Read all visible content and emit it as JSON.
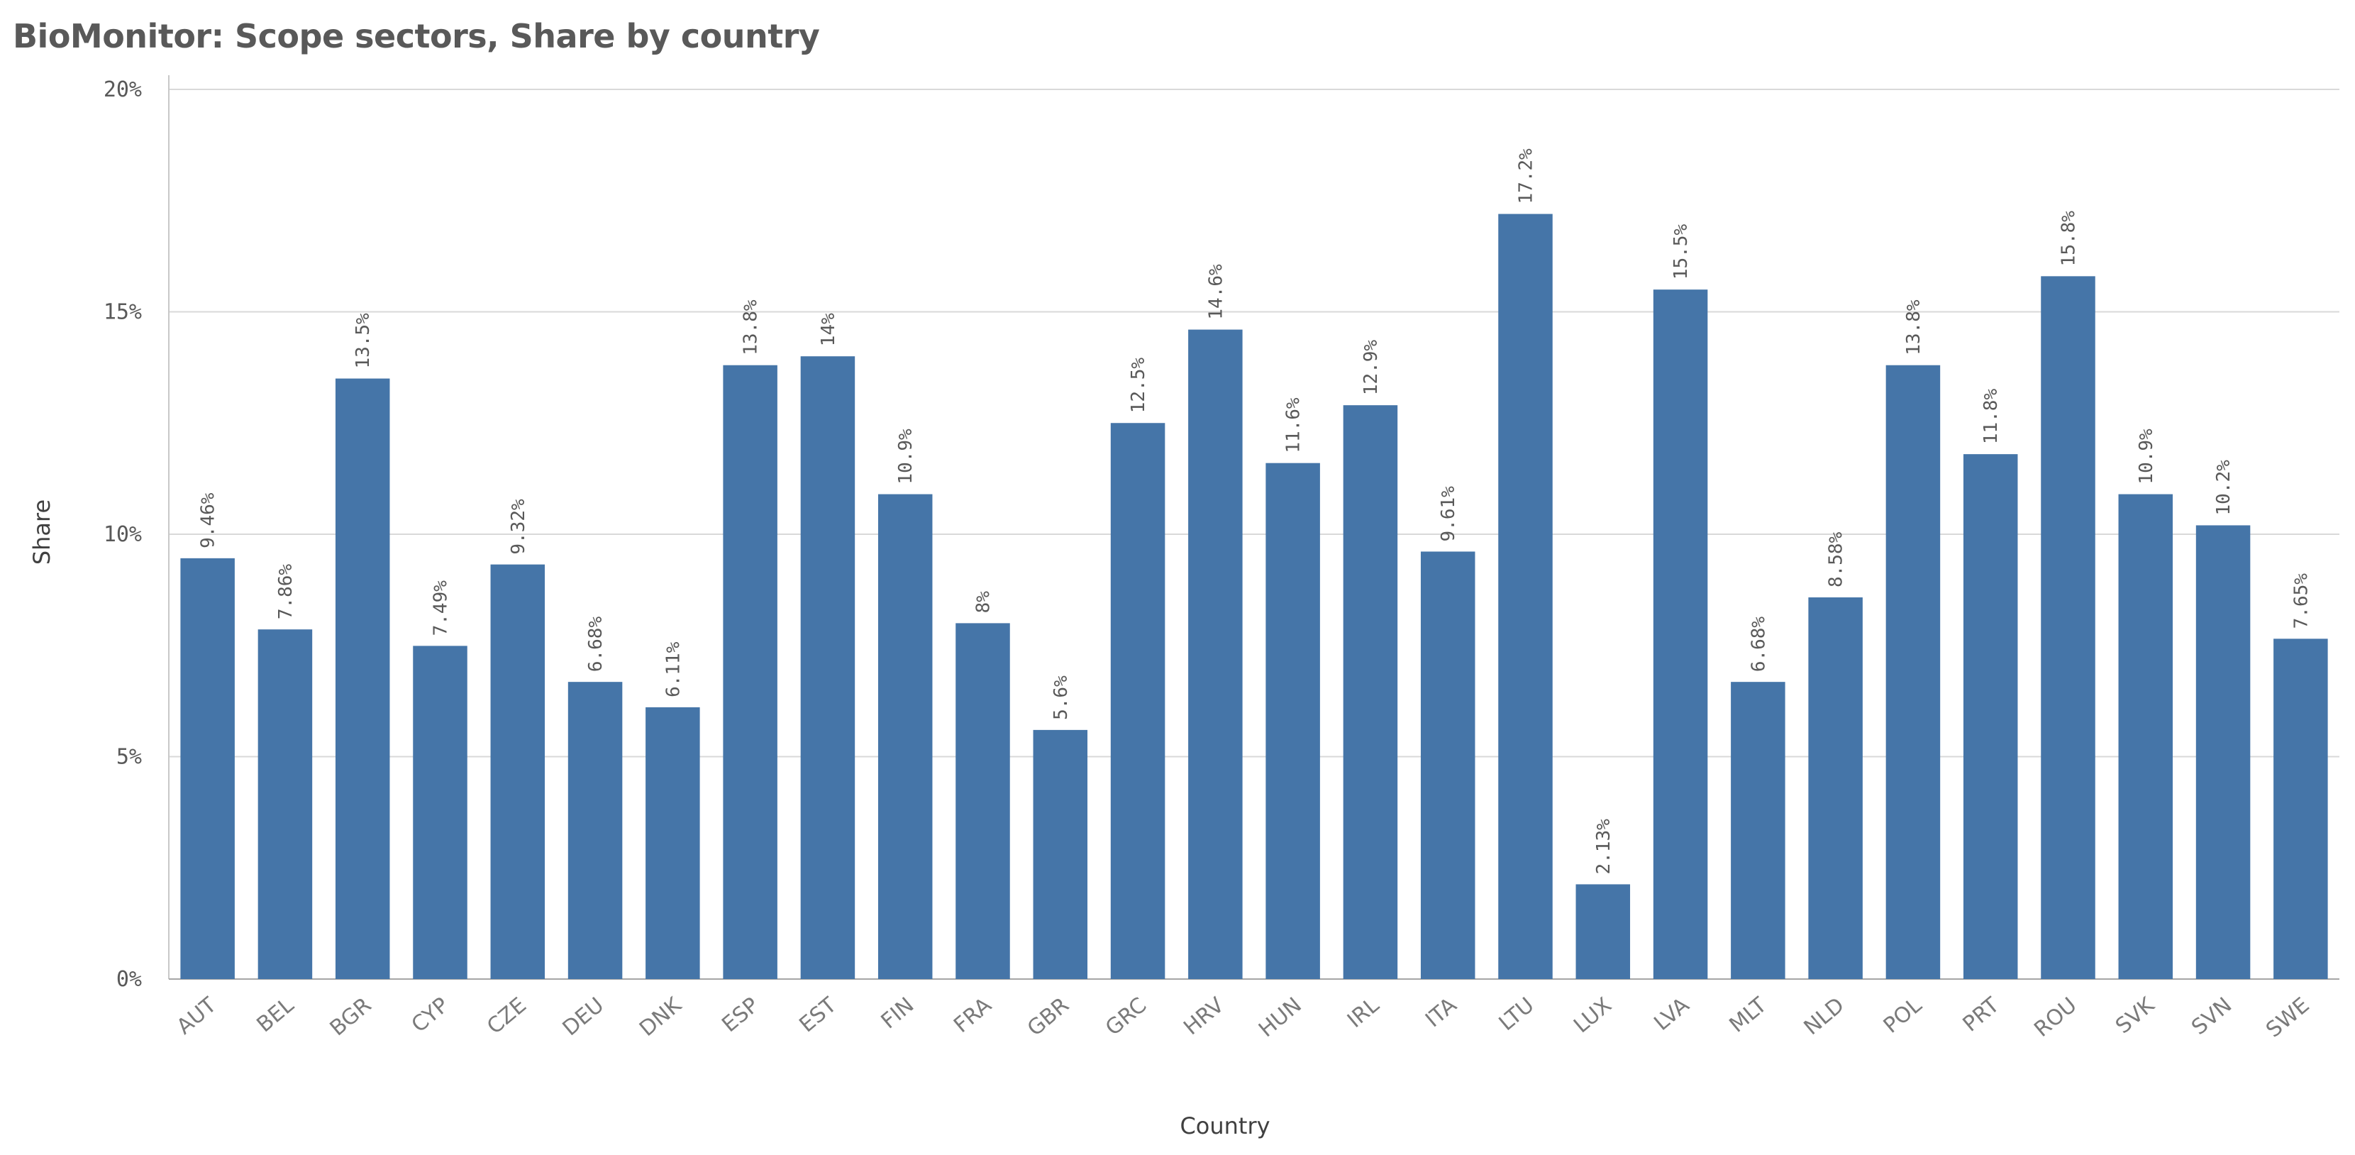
{
  "chart_data": {
    "type": "bar",
    "title": "BioMonitor: Scope sectors, Share by country",
    "xlabel": "Country",
    "ylabel": "Share",
    "ylim": [
      0,
      20
    ],
    "yticks": [
      0,
      5,
      10,
      15,
      20
    ],
    "ytick_labels": [
      "0%",
      "5%",
      "10%",
      "15%",
      "20%"
    ],
    "grid": true,
    "bar_color": "#4575a8",
    "categories": [
      "AUT",
      "BEL",
      "BGR",
      "CYP",
      "CZE",
      "DEU",
      "DNK",
      "ESP",
      "EST",
      "FIN",
      "FRA",
      "GBR",
      "GRC",
      "HRV",
      "HUN",
      "IRL",
      "ITA",
      "LTU",
      "LUX",
      "LVA",
      "MLT",
      "NLD",
      "POL",
      "PRT",
      "ROU",
      "SVK",
      "SVN",
      "SWE"
    ],
    "values": [
      9.46,
      7.86,
      13.5,
      7.49,
      9.32,
      6.68,
      6.11,
      13.8,
      14,
      10.9,
      8,
      5.6,
      12.5,
      14.6,
      11.6,
      12.9,
      9.61,
      17.2,
      2.13,
      15.5,
      6.68,
      8.58,
      13.8,
      11.8,
      15.8,
      10.9,
      10.2,
      7.65
    ],
    "data_labels": [
      "9.46%",
      "7.86%",
      "13.5%",
      "7.49%",
      "9.32%",
      "6.68%",
      "6.11%",
      "13.8%",
      "14%",
      "10.9%",
      "8%",
      "5.6%",
      "12.5%",
      "14.6%",
      "11.6%",
      "12.9%",
      "9.61%",
      "17.2%",
      "2.13%",
      "15.5%",
      "6.68%",
      "8.58%",
      "13.8%",
      "11.8%",
      "15.8%",
      "10.9%",
      "10.2%",
      "7.65%"
    ]
  }
}
